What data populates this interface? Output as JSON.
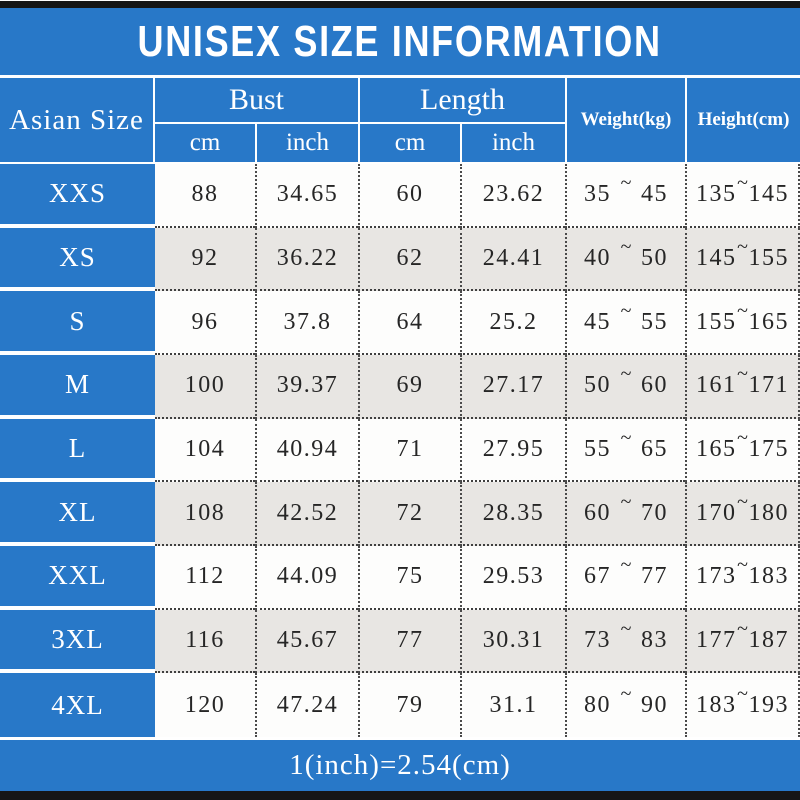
{
  "title": "UNISEX SIZE INFORMATION",
  "conversion_note": "1(inch)=2.54(cm)",
  "colors": {
    "accent_blue": "#2878c8",
    "alt_row_gray": "#e8e6e3",
    "bar_black": "#161616",
    "data_text": "#262626",
    "header_text": "#ffffff"
  },
  "table": {
    "corner_header": "Asian Size",
    "groups": {
      "bust": "Bust",
      "length": "Length"
    },
    "units": {
      "bust_cm": "cm",
      "bust_inch": "inch",
      "length_cm": "cm",
      "length_inch": "inch"
    },
    "weight_header": "Weight(kg)",
    "height_header": "Height(cm)",
    "tilde": "~",
    "rows": [
      {
        "size": "XXS",
        "bust_cm": "88",
        "bust_inch": "34.65",
        "length_cm": "60",
        "length_inch": "23.62",
        "weight_min": "35",
        "weight_max": "45",
        "height_min": "135",
        "height_max": "145"
      },
      {
        "size": "XS",
        "bust_cm": "92",
        "bust_inch": "36.22",
        "length_cm": "62",
        "length_inch": "24.41",
        "weight_min": "40",
        "weight_max": "50",
        "height_min": "145",
        "height_max": "155"
      },
      {
        "size": "S",
        "bust_cm": "96",
        "bust_inch": "37.8",
        "length_cm": "64",
        "length_inch": "25.2",
        "weight_min": "45",
        "weight_max": "55",
        "height_min": "155",
        "height_max": "165"
      },
      {
        "size": "M",
        "bust_cm": "100",
        "bust_inch": "39.37",
        "length_cm": "69",
        "length_inch": "27.17",
        "weight_min": "50",
        "weight_max": "60",
        "height_min": "161",
        "height_max": "171"
      },
      {
        "size": "L",
        "bust_cm": "104",
        "bust_inch": "40.94",
        "length_cm": "71",
        "length_inch": "27.95",
        "weight_min": "55",
        "weight_max": "65",
        "height_min": "165",
        "height_max": "175"
      },
      {
        "size": "XL",
        "bust_cm": "108",
        "bust_inch": "42.52",
        "length_cm": "72",
        "length_inch": "28.35",
        "weight_min": "60",
        "weight_max": "70",
        "height_min": "170",
        "height_max": "180"
      },
      {
        "size": "XXL",
        "bust_cm": "112",
        "bust_inch": "44.09",
        "length_cm": "75",
        "length_inch": "29.53",
        "weight_min": "67",
        "weight_max": "77",
        "height_min": "173",
        "height_max": "183"
      },
      {
        "size": "3XL",
        "bust_cm": "116",
        "bust_inch": "45.67",
        "length_cm": "77",
        "length_inch": "30.31",
        "weight_min": "73",
        "weight_max": "83",
        "height_min": "177",
        "height_max": "187"
      },
      {
        "size": "4XL",
        "bust_cm": "120",
        "bust_inch": "47.24",
        "length_cm": "79",
        "length_inch": "31.1",
        "weight_min": "80",
        "weight_max": "90",
        "height_min": "183",
        "height_max": "193"
      }
    ]
  },
  "chart_data": {
    "type": "table",
    "title": "UNISEX SIZE INFORMATION",
    "columns": [
      "Asian Size",
      "Bust cm",
      "Bust inch",
      "Length cm",
      "Length inch",
      "Weight(kg)",
      "Height(cm)"
    ],
    "rows": [
      [
        "XXS",
        "88",
        "34.65",
        "60",
        "23.62",
        "35~45",
        "135~145"
      ],
      [
        "XS",
        "92",
        "36.22",
        "62",
        "24.41",
        "40~50",
        "145~155"
      ],
      [
        "S",
        "96",
        "37.8",
        "64",
        "25.2",
        "45~55",
        "155~165"
      ],
      [
        "M",
        "100",
        "39.37",
        "69",
        "27.17",
        "50~60",
        "161~171"
      ],
      [
        "L",
        "104",
        "40.94",
        "71",
        "27.95",
        "55~65",
        "165~175"
      ],
      [
        "XL",
        "108",
        "42.52",
        "72",
        "28.35",
        "60~70",
        "170~180"
      ],
      [
        "XXL",
        "112",
        "44.09",
        "75",
        "29.53",
        "67~77",
        "173~183"
      ],
      [
        "3XL",
        "116",
        "45.67",
        "77",
        "30.31",
        "73~83",
        "177~187"
      ],
      [
        "4XL",
        "120",
        "47.24",
        "79",
        "31.1",
        "80~90",
        "183~193"
      ]
    ],
    "footnote": "1(inch)=2.54(cm)",
    "layout": {
      "alternating_row_shading": true,
      "grid": "dotted",
      "header_background": "#2878c8"
    }
  }
}
